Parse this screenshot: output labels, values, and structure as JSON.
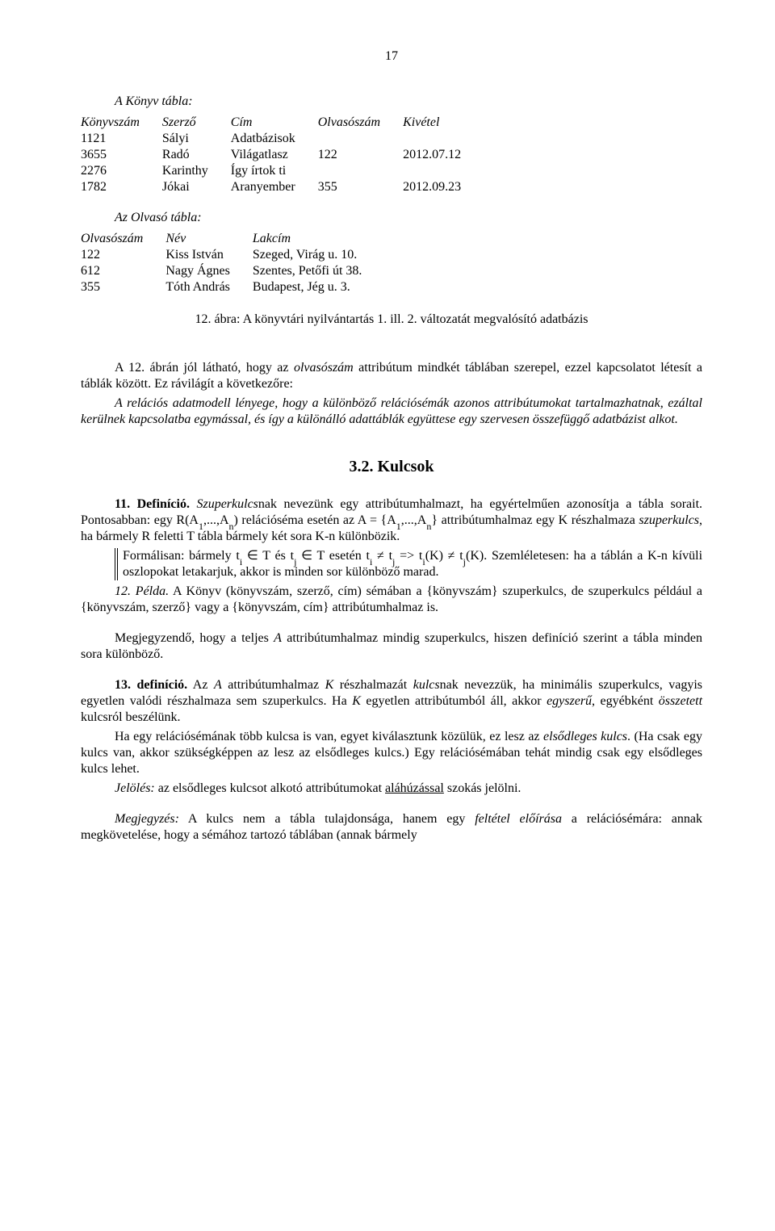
{
  "page_number": "17",
  "section1": {
    "title": "A Könyv tábla:",
    "headers": [
      "Könyvszám",
      "Szerző",
      "Cím",
      "Olvasószám",
      "Kivétel"
    ],
    "rows": [
      [
        "1121",
        "Sályi",
        "Adatbázisok",
        "",
        ""
      ],
      [
        "3655",
        "Radó",
        "Világatlasz",
        "122",
        "2012.07.12"
      ],
      [
        "2276",
        "Karinthy",
        "Így írtok ti",
        "",
        ""
      ],
      [
        "1782",
        "Jókai",
        "Aranyember",
        "355",
        "2012.09.23"
      ]
    ]
  },
  "section2": {
    "title": "Az Olvasó tábla:",
    "headers": [
      "Olvasószám",
      "Név",
      "Lakcím"
    ],
    "rows": [
      [
        "122",
        "Kiss István",
        "Szeged, Virág u. 10."
      ],
      [
        "612",
        "Nagy Ágnes",
        "Szentes, Petőfi út 38."
      ],
      [
        "355",
        "Tóth András",
        "Budapest, Jég u. 3."
      ]
    ]
  },
  "caption": "12. ábra: A könyvtári nyilvántartás 1. ill. 2. változatát megvalósító adatbázis",
  "para_a12_lead": "A 12. ábrán jól látható, hogy az ",
  "para_a12_olv": "olvasószám",
  "para_a12_tail": " attribútum mindkét táblában szerepel, ezzel kapcsolatot létesít a táblák között. Ez rávilágít a következőre:",
  "para_rel": "A relációs adatmodell lényege, hogy a különböző relációsémák azonos attribútumokat tartalmazhatnak, ezáltal kerülnek kapcsolatba egymással, és így a különálló adattáblák együttese egy szervesen összefüggő adatbázist alkot.",
  "heading_32": "3.2. Kulcsok",
  "def11": {
    "lead": "11. Definíció.",
    "t1": " ",
    "szup": "Szuperkulcs",
    "t2": "nak nevezünk egy attribútumhalmazt, ha egyértelműen azonosítja a tábla sorait. Pontosabban: egy R(A",
    "t3": ",...,A",
    "t4": ") relációséma esetén az A = {A",
    "t5": ",...,A",
    "t6": "} attribútumhalmaz egy K részhalmaza ",
    "szup2": "szuperkulcs",
    "t7": ", ha bármely R feletti T tábla bármely két sora K-n különbözik."
  },
  "formal": {
    "t1": "Formálisan: bármely t",
    "t2": " ∈ T és t",
    "t3": " ∈ T esetén t",
    "t4": " ≠ t",
    "t5": " => t",
    "t6": "(K) ≠ t",
    "t7": "(K). Szemléletesen: ha a táblán a K-n kívüli oszlopokat letakarjuk, akkor is minden sor különböző marad."
  },
  "pelda12": {
    "lead": "12. Példa.",
    "body": " A Könyv (könyvszám, szerző, cím) sémában a {könyvszám} szuperkulcs, de szuperkulcs például a {könyvszám, szerző} vagy a {könyvszám, cím} attribútumhalmaz is."
  },
  "megj_teljes": {
    "t1": "Megjegyzendő, hogy a teljes ",
    "A": "A",
    "t2": " attribútumhalmaz mindig szuperkulcs, hiszen definíció szerint a tábla minden sora különböző."
  },
  "def13": {
    "lead": "13. definíció.",
    "t1": " Az ",
    "A": "A",
    "t2": " attribútumhalmaz ",
    "K": "K",
    "t3": " részhalmazát ",
    "kulcs": "kulcs",
    "t4": "nak nevezzük, ha minimális szuperkulcs, vagyis egyetlen valódi részhalmaza sem szuperkulcs. Ha ",
    "K2": "K",
    "t5": " egyetlen attribútumból áll, akkor ",
    "egyszeru": "egyszerű",
    "t6": ", egyébként ",
    "osszetett": "összetett",
    "t7": " kulcsról beszélünk."
  },
  "elsod": {
    "t1": "Ha egy relációsémának több kulcsa is van, egyet kiválasztunk közülük, ez lesz az ",
    "e1": "elsődleges kulcs",
    "t2": ". (Ha csak egy kulcs van, akkor szükségképpen az lesz az elsődleges kulcs.) Egy relációsémában tehát mindig csak egy elsődleges kulcs lehet."
  },
  "jeloles": {
    "lead": "Jelölés:",
    "body": " az elsődleges kulcsot alkotó attribútumokat ",
    "under": "aláhúzással",
    "tail": " szokás jelölni."
  },
  "megj_kulcs": {
    "lead": "Megjegyzés:",
    "t1": " A kulcs nem a tábla tulajdonsága, hanem egy ",
    "felt": "feltétel előírása",
    "t2": " a relációsémára: annak megkövetelése, hogy a sémához tartozó táblában (annak bármely"
  },
  "sub": {
    "one": "1",
    "n": "n",
    "i": "i",
    "j": "j"
  }
}
